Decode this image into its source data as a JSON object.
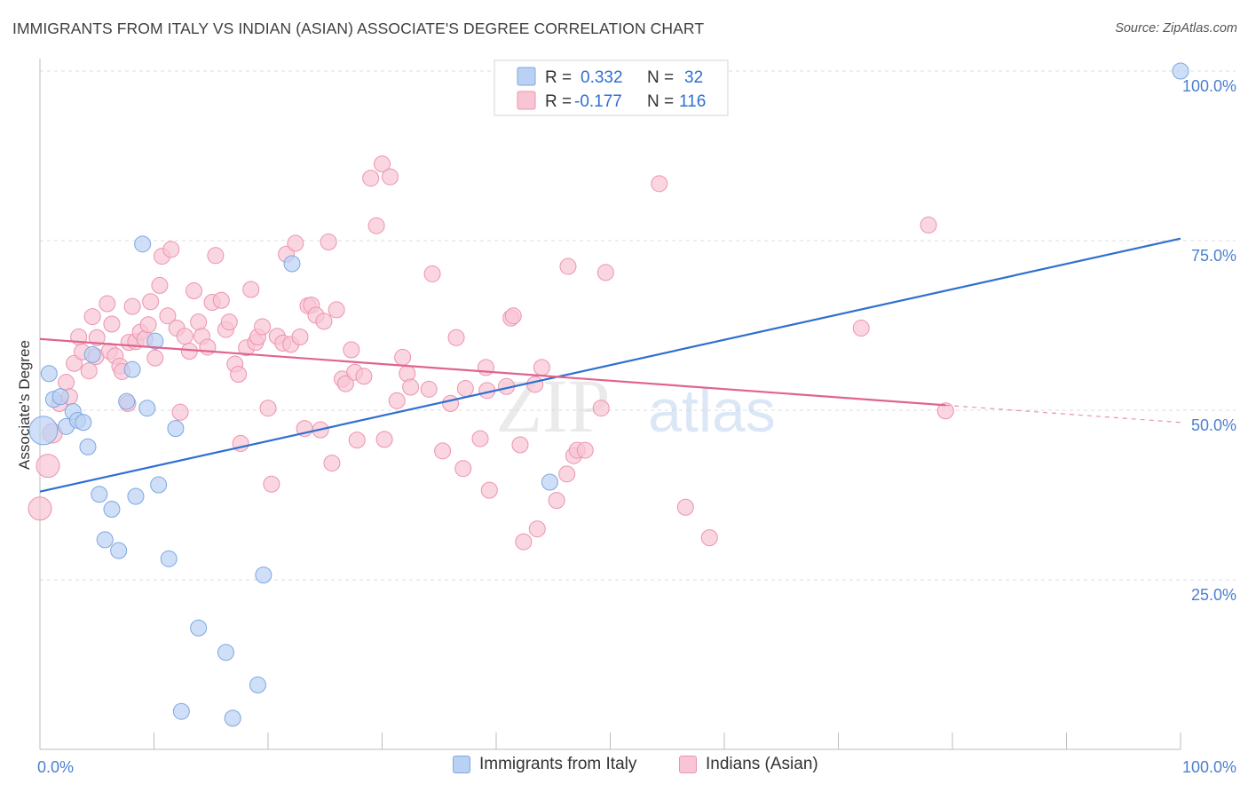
{
  "header": {
    "title": "IMMIGRANTS FROM ITALY VS INDIAN (ASIAN) ASSOCIATE'S DEGREE CORRELATION CHART",
    "source": "Source: ZipAtlas.com"
  },
  "watermark": {
    "zip": "ZIP",
    "atlas": "atlas"
  },
  "colors": {
    "blue_fill": "#b9d2f4",
    "blue_stroke": "#7ea7e0",
    "blue_line": "#2f6fd0",
    "pink_fill": "#f8c5d4",
    "pink_stroke": "#ec93b0",
    "pink_line": "#e0648f",
    "value_text": "#2f6fd0",
    "axis_text": "#4a7fd0"
  },
  "chart_data": {
    "type": "scatter",
    "title": "IMMIGRANTS FROM ITALY VS INDIAN (ASIAN) ASSOCIATE'S DEGREE CORRELATION CHART",
    "xlabel": "",
    "ylabel": "Associate's Degree",
    "xlim": [
      0,
      100
    ],
    "ylim": [
      0,
      100
    ],
    "x_tick_labels": [
      {
        "value": 0,
        "label": "0.0%"
      },
      {
        "value": 100,
        "label": "100.0%"
      }
    ],
    "y_tick_labels": [
      {
        "value": 25,
        "label": "25.0%"
      },
      {
        "value": 50,
        "label": "50.0%"
      },
      {
        "value": 75,
        "label": "75.0%"
      },
      {
        "value": 100,
        "label": "100.0%"
      }
    ],
    "grid": true,
    "legend": {
      "placement": "top-center",
      "rows": [
        {
          "r_label": "R =",
          "r_value": "0.332",
          "n_label": "N =",
          "n_value": "32"
        },
        {
          "r_label": "R =",
          "r_value": "-0.177",
          "n_label": "N =",
          "n_value": "116"
        }
      ]
    },
    "series": [
      {
        "name": "Immigrants from Italy",
        "r": 0.332,
        "n": 32,
        "trend": {
          "x0": 0,
          "y0": 38.0,
          "x1": 100,
          "y1": 75.3,
          "dashed_from_x": null
        },
        "points": [
          [
            0.3,
            47.0,
            16
          ],
          [
            0.8,
            55.4,
            9
          ],
          [
            1.2,
            51.6,
            9
          ],
          [
            1.8,
            52.0,
            9
          ],
          [
            2.3,
            47.6,
            9
          ],
          [
            2.9,
            49.8,
            9
          ],
          [
            3.3,
            48.5,
            9
          ],
          [
            3.8,
            48.2,
            9
          ],
          [
            4.2,
            44.6,
            9
          ],
          [
            4.6,
            58.2,
            9
          ],
          [
            5.2,
            37.6,
            9
          ],
          [
            6.3,
            35.4,
            9
          ],
          [
            5.7,
            30.9,
            9
          ],
          [
            6.9,
            29.3,
            9
          ],
          [
            7.6,
            51.3,
            9
          ],
          [
            8.1,
            56.0,
            9
          ],
          [
            8.4,
            37.3,
            9
          ],
          [
            9.4,
            50.3,
            9
          ],
          [
            9.0,
            74.5,
            9
          ],
          [
            10.1,
            60.2,
            9
          ],
          [
            10.4,
            39.0,
            9
          ],
          [
            11.3,
            28.1,
            9
          ],
          [
            11.9,
            47.3,
            9
          ],
          [
            12.4,
            5.6,
            9
          ],
          [
            13.9,
            17.9,
            9
          ],
          [
            16.3,
            14.3,
            9
          ],
          [
            16.9,
            4.6,
            9
          ],
          [
            19.1,
            9.5,
            9
          ],
          [
            19.6,
            25.7,
            9
          ],
          [
            22.1,
            71.6,
            9
          ],
          [
            44.7,
            39.4,
            9
          ],
          [
            100.0,
            100.0,
            9
          ]
        ]
      },
      {
        "name": "Indians (Asian)",
        "r": -0.177,
        "n": 116,
        "trend": {
          "x0": 0,
          "y0": 60.5,
          "x1": 100,
          "y1": 48.2,
          "dashed_from_x": 79.4
        },
        "points": [
          [
            0.0,
            35.5,
            13
          ],
          [
            0.7,
            41.8,
            13
          ],
          [
            1.1,
            46.6,
            11
          ],
          [
            1.7,
            51.0,
            9
          ],
          [
            2.3,
            54.1,
            9
          ],
          [
            2.6,
            52.0,
            9
          ],
          [
            3.0,
            56.9,
            9
          ],
          [
            3.4,
            60.8,
            9
          ],
          [
            3.7,
            58.6,
            9
          ],
          [
            4.3,
            55.8,
            9
          ],
          [
            4.6,
            63.8,
            9
          ],
          [
            4.9,
            57.9,
            9
          ],
          [
            5.0,
            60.7,
            9
          ],
          [
            5.9,
            65.7,
            9
          ],
          [
            6.1,
            58.7,
            9
          ],
          [
            6.3,
            62.7,
            9
          ],
          [
            6.6,
            58.0,
            9
          ],
          [
            7.0,
            56.5,
            9
          ],
          [
            7.2,
            55.7,
            9
          ],
          [
            7.7,
            51.0,
            9
          ],
          [
            7.8,
            60.0,
            9
          ],
          [
            8.1,
            65.3,
            9
          ],
          [
            8.4,
            60.1,
            9
          ],
          [
            8.8,
            61.5,
            9
          ],
          [
            9.2,
            60.5,
            9
          ],
          [
            9.5,
            62.6,
            9
          ],
          [
            9.7,
            66.0,
            9
          ],
          [
            10.1,
            57.7,
            9
          ],
          [
            10.5,
            68.4,
            9
          ],
          [
            10.7,
            72.7,
            9
          ],
          [
            11.2,
            63.9,
            9
          ],
          [
            11.5,
            73.7,
            9
          ],
          [
            12.0,
            62.1,
            9
          ],
          [
            12.3,
            49.7,
            9
          ],
          [
            12.7,
            60.9,
            9
          ],
          [
            13.1,
            58.7,
            9
          ],
          [
            13.5,
            67.6,
            9
          ],
          [
            13.9,
            63.0,
            9
          ],
          [
            14.2,
            60.9,
            9
          ],
          [
            14.7,
            59.3,
            9
          ],
          [
            15.1,
            65.9,
            9
          ],
          [
            15.4,
            72.8,
            9
          ],
          [
            15.9,
            66.2,
            9
          ],
          [
            16.3,
            61.9,
            9
          ],
          [
            16.6,
            63.0,
            9
          ],
          [
            17.1,
            56.8,
            9
          ],
          [
            17.4,
            55.3,
            9
          ],
          [
            17.6,
            45.1,
            9
          ],
          [
            18.1,
            59.2,
            9
          ],
          [
            18.5,
            67.8,
            9
          ],
          [
            18.9,
            60.0,
            9
          ],
          [
            19.1,
            60.8,
            9
          ],
          [
            19.5,
            62.3,
            9
          ],
          [
            20.0,
            50.3,
            9
          ],
          [
            20.3,
            39.1,
            9
          ],
          [
            20.8,
            60.9,
            9
          ],
          [
            21.3,
            59.9,
            9
          ],
          [
            21.6,
            73.0,
            9
          ],
          [
            22.0,
            59.7,
            9
          ],
          [
            22.4,
            74.6,
            9
          ],
          [
            22.8,
            60.8,
            9
          ],
          [
            23.2,
            47.3,
            9
          ],
          [
            23.5,
            65.4,
            9
          ],
          [
            23.8,
            65.5,
            9
          ],
          [
            24.2,
            64.0,
            9
          ],
          [
            24.6,
            47.1,
            9
          ],
          [
            24.9,
            63.1,
            9
          ],
          [
            25.3,
            74.8,
            9
          ],
          [
            25.6,
            42.2,
            9
          ],
          [
            26.0,
            64.8,
            9
          ],
          [
            26.5,
            54.6,
            9
          ],
          [
            26.8,
            53.9,
            9
          ],
          [
            27.3,
            58.9,
            9
          ],
          [
            27.6,
            55.6,
            9
          ],
          [
            27.8,
            45.6,
            9
          ],
          [
            28.4,
            55.0,
            9
          ],
          [
            29.0,
            84.2,
            9
          ],
          [
            29.5,
            77.2,
            9
          ],
          [
            30.0,
            86.3,
            9
          ],
          [
            30.2,
            45.7,
            9
          ],
          [
            30.7,
            84.4,
            9
          ],
          [
            31.3,
            51.4,
            9
          ],
          [
            31.8,
            57.8,
            9
          ],
          [
            32.2,
            55.4,
            9
          ],
          [
            32.5,
            53.4,
            9
          ],
          [
            34.1,
            53.1,
            9
          ],
          [
            34.4,
            70.1,
            9
          ],
          [
            35.3,
            44.0,
            9
          ],
          [
            36.0,
            51.0,
            9
          ],
          [
            36.5,
            60.7,
            9
          ],
          [
            37.1,
            41.4,
            9
          ],
          [
            37.3,
            53.2,
            9
          ],
          [
            38.6,
            45.8,
            9
          ],
          [
            39.1,
            56.3,
            9
          ],
          [
            39.2,
            52.9,
            9
          ],
          [
            39.4,
            38.2,
            9
          ],
          [
            40.9,
            53.5,
            9
          ],
          [
            41.3,
            63.6,
            9
          ],
          [
            41.5,
            63.9,
            9
          ],
          [
            42.1,
            44.9,
            9
          ],
          [
            42.4,
            30.6,
            9
          ],
          [
            43.4,
            53.8,
            9
          ],
          [
            43.6,
            32.5,
            9
          ],
          [
            44.0,
            56.3,
            9
          ],
          [
            45.3,
            36.7,
            9
          ],
          [
            46.2,
            40.6,
            9
          ],
          [
            46.3,
            71.2,
            9
          ],
          [
            46.8,
            43.3,
            9
          ],
          [
            47.1,
            44.1,
            9
          ],
          [
            47.8,
            44.1,
            9
          ],
          [
            49.2,
            50.3,
            9
          ],
          [
            49.6,
            70.3,
            9
          ],
          [
            54.3,
            83.4,
            9
          ],
          [
            56.6,
            35.7,
            9
          ],
          [
            58.7,
            31.2,
            9
          ],
          [
            77.9,
            77.3,
            9
          ],
          [
            79.4,
            49.9,
            9
          ],
          [
            72.0,
            62.1,
            9
          ]
        ]
      }
    ]
  },
  "bottom_legend": [
    {
      "label": "Immigrants from Italy"
    },
    {
      "label": "Indians (Asian)"
    }
  ]
}
